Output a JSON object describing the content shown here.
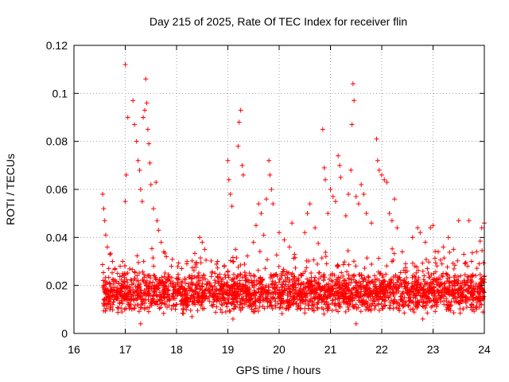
{
  "chart_data": {
    "type": "scatter",
    "title": "Day 215 of 2025, Rate Of TEC Index for receiver flin",
    "xlabel": "GPS time / hours",
    "ylabel": "ROTI / TECUs",
    "xlim": [
      16,
      24
    ],
    "ylim": [
      0,
      0.12
    ],
    "xticks": [
      16,
      17,
      18,
      19,
      20,
      21,
      22,
      23,
      24
    ],
    "xtick_labels": [
      "16",
      "17",
      "18",
      "19",
      "20",
      "21",
      "22",
      "23",
      "24"
    ],
    "yticks": [
      0,
      0.02,
      0.04,
      0.06,
      0.08,
      0.1,
      0.12
    ],
    "ytick_labels": [
      "0",
      "0.02",
      "0.04",
      "0.06",
      "0.08",
      "0.1",
      "0.12"
    ],
    "grid": true,
    "legend": "none",
    "marker": "plus",
    "color": "#ff0000",
    "series": [
      {
        "name": "ROTI",
        "points": [
          [
            16.56,
            0.058
          ],
          [
            16.58,
            0.052
          ],
          [
            16.6,
            0.047
          ],
          [
            16.62,
            0.041
          ],
          [
            16.65,
            0.036
          ],
          [
            16.7,
            0.033
          ],
          [
            16.75,
            0.03
          ],
          [
            16.8,
            0.027
          ],
          [
            16.85,
            0.025
          ],
          [
            16.9,
            0.028
          ],
          [
            16.95,
            0.03
          ],
          [
            17.0,
            0.055
          ],
          [
            17.02,
            0.066
          ],
          [
            17.05,
            0.09
          ],
          [
            17.0,
            0.112
          ],
          [
            17.15,
            0.097
          ],
          [
            17.18,
            0.087
          ],
          [
            17.22,
            0.08
          ],
          [
            17.25,
            0.072
          ],
          [
            17.28,
            0.068
          ],
          [
            17.3,
            0.06
          ],
          [
            17.33,
            0.055
          ],
          [
            17.35,
            0.09
          ],
          [
            17.38,
            0.093
          ],
          [
            17.4,
            0.106
          ],
          [
            17.42,
            0.096
          ],
          [
            17.44,
            0.085
          ],
          [
            17.46,
            0.079
          ],
          [
            17.48,
            0.071
          ],
          [
            17.5,
            0.062
          ],
          [
            17.55,
            0.052
          ],
          [
            17.6,
            0.063
          ],
          [
            17.62,
            0.047
          ],
          [
            17.65,
            0.043
          ],
          [
            17.7,
            0.038
          ],
          [
            17.75,
            0.034
          ],
          [
            17.8,
            0.032
          ],
          [
            17.9,
            0.028
          ],
          [
            18.1,
            0.027
          ],
          [
            18.2,
            0.029
          ],
          [
            18.45,
            0.04
          ],
          [
            18.5,
            0.038
          ],
          [
            18.55,
            0.035
          ],
          [
            18.8,
            0.03
          ],
          [
            19.0,
            0.072
          ],
          [
            19.02,
            0.064
          ],
          [
            19.05,
            0.058
          ],
          [
            19.08,
            0.053
          ],
          [
            19.1,
            0.03
          ],
          [
            19.15,
            0.035
          ],
          [
            19.2,
            0.078
          ],
          [
            19.22,
            0.088
          ],
          [
            19.25,
            0.093
          ],
          [
            19.28,
            0.07
          ],
          [
            19.3,
            0.066
          ],
          [
            19.5,
            0.038
          ],
          [
            19.55,
            0.045
          ],
          [
            19.6,
            0.054
          ],
          [
            19.65,
            0.05
          ],
          [
            19.7,
            0.041
          ],
          [
            19.75,
            0.056
          ],
          [
            19.8,
            0.072
          ],
          [
            19.82,
            0.066
          ],
          [
            19.85,
            0.06
          ],
          [
            19.88,
            0.054
          ],
          [
            20.0,
            0.042
          ],
          [
            20.1,
            0.039
          ],
          [
            20.2,
            0.036
          ],
          [
            20.25,
            0.046
          ],
          [
            20.3,
            0.033
          ],
          [
            20.5,
            0.042
          ],
          [
            20.55,
            0.05
          ],
          [
            20.6,
            0.054
          ],
          [
            20.7,
            0.044
          ],
          [
            20.85,
            0.085
          ],
          [
            20.88,
            0.069
          ],
          [
            20.9,
            0.064
          ],
          [
            20.95,
            0.05
          ],
          [
            21.0,
            0.06
          ],
          [
            21.05,
            0.057
          ],
          [
            21.1,
            0.055
          ],
          [
            21.15,
            0.074
          ],
          [
            21.18,
            0.07
          ],
          [
            21.2,
            0.065
          ],
          [
            21.3,
            0.049
          ],
          [
            21.35,
            0.058
          ],
          [
            21.4,
            0.068
          ],
          [
            21.42,
            0.087
          ],
          [
            21.44,
            0.104
          ],
          [
            21.46,
            0.097
          ],
          [
            21.5,
            0.057
          ],
          [
            21.55,
            0.054
          ],
          [
            21.6,
            0.062
          ],
          [
            21.65,
            0.058
          ],
          [
            21.7,
            0.05
          ],
          [
            21.8,
            0.046
          ],
          [
            21.9,
            0.081
          ],
          [
            21.92,
            0.072
          ],
          [
            21.95,
            0.068
          ],
          [
            22.0,
            0.066
          ],
          [
            22.05,
            0.064
          ],
          [
            22.1,
            0.063
          ],
          [
            22.15,
            0.05
          ],
          [
            22.2,
            0.047
          ],
          [
            22.25,
            0.056
          ],
          [
            22.3,
            0.044
          ],
          [
            22.4,
            0.034
          ],
          [
            22.6,
            0.04
          ],
          [
            22.7,
            0.044
          ],
          [
            22.75,
            0.042
          ],
          [
            22.85,
            0.038
          ],
          [
            22.95,
            0.044
          ],
          [
            23.0,
            0.045
          ],
          [
            23.1,
            0.034
          ],
          [
            23.2,
            0.036
          ],
          [
            23.3,
            0.04
          ],
          [
            23.4,
            0.035
          ],
          [
            23.5,
            0.047
          ],
          [
            23.6,
            0.033
          ],
          [
            23.7,
            0.047
          ],
          [
            23.75,
            0.03
          ],
          [
            23.85,
            0.034
          ],
          [
            23.9,
            0.029
          ],
          [
            23.95,
            0.044
          ],
          [
            24.0,
            0.046
          ],
          [
            17.3,
            0.004
          ],
          [
            21.5,
            0.004
          ],
          [
            19.1,
            0.006
          ],
          [
            22.8,
            0.006
          ],
          [
            18.3,
            0.007
          ]
        ]
      }
    ],
    "background_cloud": {
      "x_range": [
        16.55,
        24.0
      ],
      "typical_range": [
        0.008,
        0.026
      ],
      "description_count": 2600
    }
  }
}
